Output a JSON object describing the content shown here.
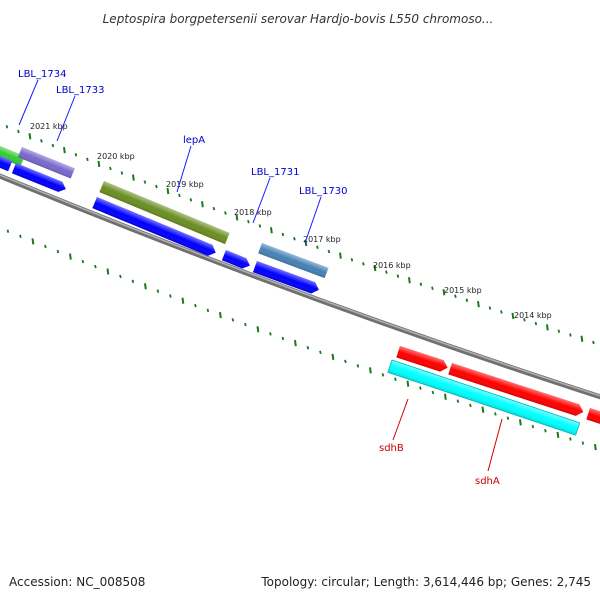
{
  "map": {
    "title": "Leptospira borgpetersenii serovar Hardjo-bovis L550 chromoso...",
    "accession": "Accession: NC_008508",
    "summary": "Topology: circular; Length: 3,614,446 bp; Genes: 2,745"
  },
  "colors": {
    "backbone": "#808080",
    "tick": "#1a7a1a",
    "forward_label": "#0000cc",
    "reverse_label": "#cc0000"
  },
  "ticks": [
    "2021 kbp",
    "2020 kbp",
    "2019 kbp",
    "2018 kbp",
    "2017 kbp",
    "2016 kbp",
    "2015 kbp",
    "2014 kbp"
  ],
  "genes": [
    {
      "label": "LBL_1734",
      "color": "#33cc33",
      "strand": "+"
    },
    {
      "label": "LBL_1733",
      "color": "#7b68cc",
      "strand": "+"
    },
    {
      "label": "lepA",
      "color": "#6b8e23",
      "strand": "+"
    },
    {
      "label": "LBL_1731",
      "color": "#4682b4",
      "strand": "+"
    },
    {
      "label": "LBL_1730",
      "color": "#0000ff",
      "strand": "-"
    },
    {
      "label": "sdhB",
      "color": "#00ffff",
      "strand": "-"
    },
    {
      "label": "sdhA",
      "color": "#00ffff",
      "strand": "-"
    }
  ],
  "unlabeled_features": [
    {
      "color": "#0000ff",
      "strand": "-"
    },
    {
      "color": "#0000ff",
      "strand": "-"
    },
    {
      "color": "#0000ff",
      "strand": "-"
    },
    {
      "color": "#0000ff",
      "strand": "-"
    },
    {
      "color": "#ff0000",
      "strand": "+"
    },
    {
      "color": "#ff0000",
      "strand": "+"
    },
    {
      "color": "#ff0000",
      "strand": "+"
    }
  ]
}
